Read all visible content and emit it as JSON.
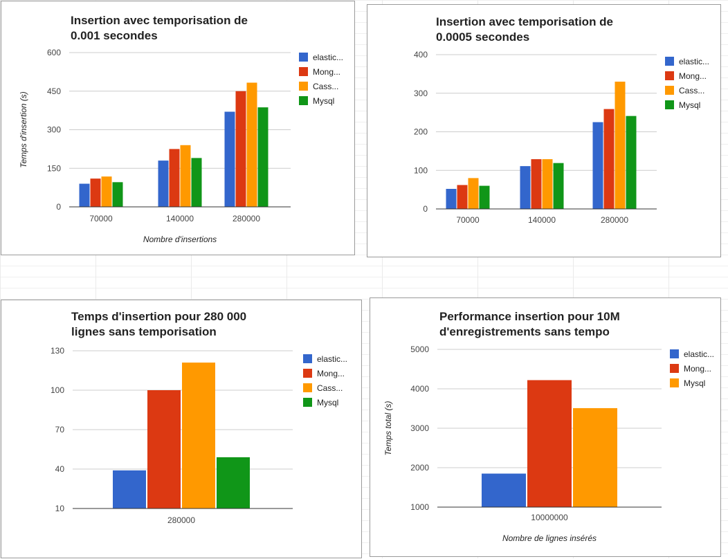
{
  "colors": {
    "elastic": "#3366cc",
    "mongo": "#dc3912",
    "cassandra": "#ff9900",
    "mysql": "#109618",
    "grid": "#cccccc",
    "axis": "#333333"
  },
  "chart_data": [
    {
      "type": "bar",
      "title_lines": [
        "Insertion avec temporisation de",
        "0.001 secondes"
      ],
      "xlabel": "Nombre d'insertions",
      "ylabel": "Temps d'insertion (s)",
      "categories": [
        "70000",
        "140000",
        "280000"
      ],
      "ylim": [
        0,
        600
      ],
      "yticks": [
        "0",
        "150",
        "300",
        "450",
        "600"
      ],
      "legend_position": "right",
      "series": [
        {
          "name": "elastic...",
          "color_key": "elastic",
          "values": [
            90,
            180,
            370
          ]
        },
        {
          "name": "Mong...",
          "color_key": "mongo",
          "values": [
            110,
            225,
            450
          ]
        },
        {
          "name": "Cass...",
          "color_key": "cassandra",
          "values": [
            118,
            240,
            483
          ]
        },
        {
          "name": "Mysql",
          "color_key": "mysql",
          "values": [
            96,
            190,
            387
          ]
        }
      ]
    },
    {
      "type": "bar",
      "title_lines": [
        "Insertion avec temporisation de",
        "0.0005 secondes"
      ],
      "xlabel": "",
      "ylabel": "",
      "categories": [
        "70000",
        "140000",
        "280000"
      ],
      "ylim": [
        0,
        400
      ],
      "yticks": [
        "0",
        "100",
        "200",
        "300",
        "400"
      ],
      "legend_position": "right",
      "series": [
        {
          "name": "elastic...",
          "color_key": "elastic",
          "values": [
            52,
            111,
            225
          ]
        },
        {
          "name": "Mong...",
          "color_key": "mongo",
          "values": [
            62,
            129,
            259
          ]
        },
        {
          "name": "Cass...",
          "color_key": "cassandra",
          "values": [
            80,
            129,
            330
          ]
        },
        {
          "name": "Mysql",
          "color_key": "mysql",
          "values": [
            60,
            119,
            241
          ]
        }
      ]
    },
    {
      "type": "bar",
      "title_lines": [
        "Temps d'insertion pour 280 000",
        "lignes sans temporisation"
      ],
      "xlabel": "",
      "ylabel": "",
      "categories": [
        "280000"
      ],
      "ylim": [
        10,
        130
      ],
      "yticks": [
        "10",
        "40",
        "70",
        "100",
        "130"
      ],
      "legend_position": "right",
      "series": [
        {
          "name": "elastic...",
          "color_key": "elastic",
          "values": [
            39
          ]
        },
        {
          "name": "Mong...",
          "color_key": "mongo",
          "values": [
            100
          ]
        },
        {
          "name": "Cass...",
          "color_key": "cassandra",
          "values": [
            121
          ]
        },
        {
          "name": "Mysql",
          "color_key": "mysql",
          "values": [
            49
          ]
        }
      ]
    },
    {
      "type": "bar",
      "title_lines": [
        "Performance insertion pour 10M",
        "d'enregistrements sans tempo"
      ],
      "xlabel": "Nombre de lignes insérés",
      "ylabel": "Temps total (s)",
      "categories": [
        "10000000"
      ],
      "ylim": [
        1000,
        5000
      ],
      "yticks": [
        "1000",
        "2000",
        "3000",
        "4000",
        "5000"
      ],
      "legend_position": "right",
      "series": [
        {
          "name": "elastic...",
          "color_key": "elastic",
          "values": [
            1850
          ]
        },
        {
          "name": "Mong...",
          "color_key": "mongo",
          "values": [
            4220
          ]
        },
        {
          "name": "Mysql",
          "color_key": "cassandra",
          "values": [
            3510
          ]
        }
      ]
    }
  ]
}
